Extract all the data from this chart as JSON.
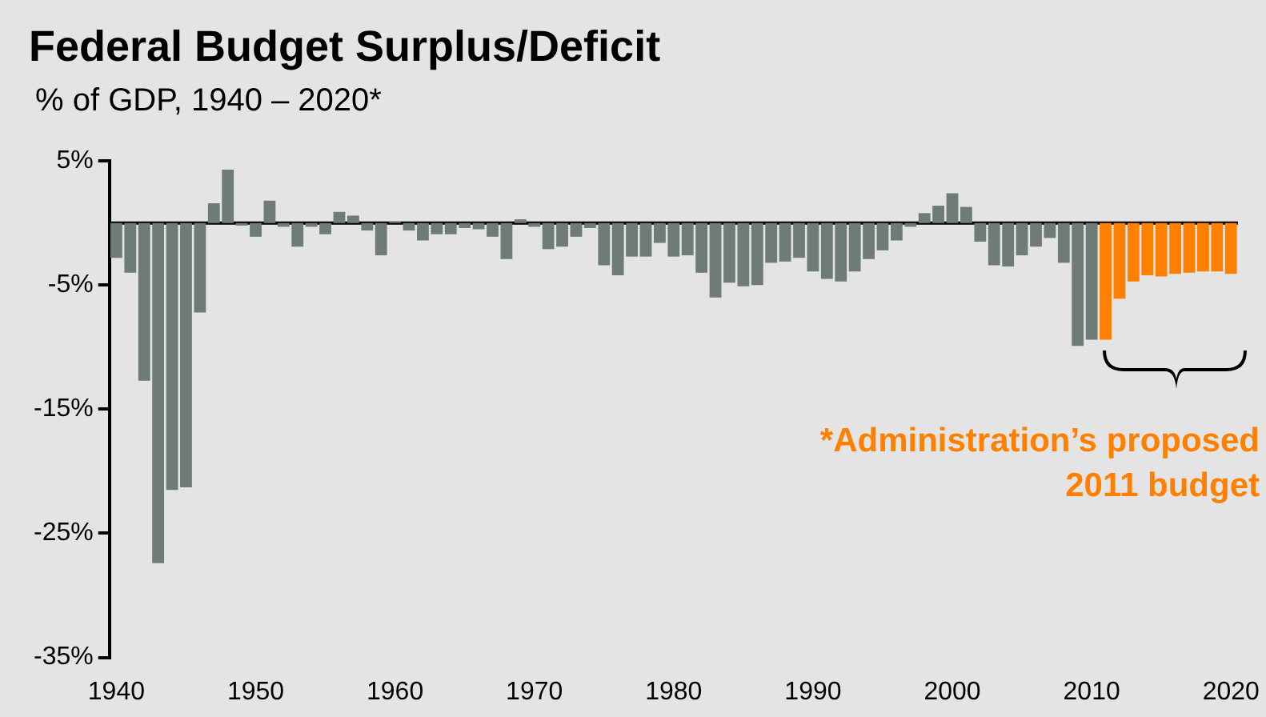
{
  "chart_data": {
    "type": "bar",
    "title": "Federal Budget Surplus/Deficit",
    "subtitle": "% of GDP, 1940 – 2020*",
    "categories": [
      "1940",
      null,
      null,
      null,
      null,
      null,
      null,
      null,
      null,
      null,
      "1950",
      null,
      null,
      null,
      null,
      null,
      null,
      null,
      null,
      null,
      "1960",
      null,
      null,
      null,
      null,
      null,
      null,
      null,
      null,
      null,
      "1970",
      null,
      null,
      null,
      null,
      null,
      null,
      null,
      null,
      null,
      "1980",
      null,
      null,
      null,
      null,
      null,
      null,
      null,
      null,
      null,
      "1990",
      null,
      null,
      null,
      null,
      null,
      null,
      null,
      null,
      null,
      "2000",
      null,
      null,
      null,
      null,
      null,
      null,
      null,
      null,
      null,
      "2010",
      null,
      null,
      null,
      null,
      null,
      null,
      null,
      null,
      null,
      "2020"
    ],
    "values": [
      -2.8,
      -4.0,
      -12.7,
      -27.4,
      -21.5,
      -21.3,
      -7.2,
      1.6,
      4.3,
      -0.2,
      -1.1,
      1.8,
      -0.3,
      -1.9,
      -0.3,
      -0.9,
      0.9,
      0.6,
      -0.6,
      -2.6,
      0.1,
      -0.6,
      -1.4,
      -0.9,
      -0.9,
      -0.4,
      -0.5,
      -1.1,
      -2.9,
      0.3,
      -0.3,
      -2.1,
      -1.9,
      -1.1,
      -0.4,
      -3.4,
      -4.2,
      -2.7,
      -2.7,
      -1.6,
      -2.7,
      -2.6,
      -4.0,
      -6.0,
      -4.8,
      -5.1,
      -5.0,
      -3.2,
      -3.1,
      -2.8,
      -3.9,
      -4.5,
      -4.7,
      -3.9,
      -2.9,
      -2.2,
      -1.4,
      -0.3,
      0.8,
      1.4,
      2.4,
      1.3,
      -1.5,
      -3.4,
      -3.5,
      -2.6,
      -1.9,
      -1.2,
      -3.2,
      -9.9,
      -9.4,
      -9.4,
      -6.1,
      -4.7,
      -4.2,
      -4.3,
      -4.1,
      -4.0,
      -3.9,
      -3.9,
      -4.1
    ],
    "colors": [
      "#6e7b76",
      "#6e7b76",
      "#6e7b76",
      "#6e7b76",
      "#6e7b76",
      "#6e7b76",
      "#6e7b76",
      "#6e7b76",
      "#6e7b76",
      "#6e7b76",
      "#6e7b76",
      "#6e7b76",
      "#6e7b76",
      "#6e7b76",
      "#6e7b76",
      "#6e7b76",
      "#6e7b76",
      "#6e7b76",
      "#6e7b76",
      "#6e7b76",
      "#6e7b76",
      "#6e7b76",
      "#6e7b76",
      "#6e7b76",
      "#6e7b76",
      "#6e7b76",
      "#6e7b76",
      "#6e7b76",
      "#6e7b76",
      "#6e7b76",
      "#6e7b76",
      "#6e7b76",
      "#6e7b76",
      "#6e7b76",
      "#6e7b76",
      "#6e7b76",
      "#6e7b76",
      "#6e7b76",
      "#6e7b76",
      "#6e7b76",
      "#6e7b76",
      "#6e7b76",
      "#6e7b76",
      "#6e7b76",
      "#6e7b76",
      "#6e7b76",
      "#6e7b76",
      "#6e7b76",
      "#6e7b76",
      "#6e7b76",
      "#6e7b76",
      "#6e7b76",
      "#6e7b76",
      "#6e7b76",
      "#6e7b76",
      "#6e7b76",
      "#6e7b76",
      "#6e7b76",
      "#6e7b76",
      "#6e7b76",
      "#6e7b76",
      "#6e7b76",
      "#6e7b76",
      "#6e7b76",
      "#6e7b76",
      "#6e7b76",
      "#6e7b76",
      "#6e7b76",
      "#6e7b76",
      "#6e7b76",
      "#6e7b76",
      "#ff8000",
      "#ff8000",
      "#ff8000",
      "#ff8000",
      "#ff8000",
      "#ff8000",
      "#ff8000",
      "#ff8000",
      "#ff8000",
      "#ff8000"
    ],
    "ylim": [
      -35,
      5
    ],
    "yticks": [
      {
        "value": 5,
        "label": "5%"
      },
      {
        "value": -5,
        "label": "-5%"
      },
      {
        "value": -15,
        "label": "-15%"
      },
      {
        "value": -25,
        "label": "-25%"
      },
      {
        "value": -35,
        "label": "-35%"
      }
    ],
    "grid": false,
    "legend": false,
    "annotations": [
      "*Administration’s proposed 2011 budget"
    ]
  }
}
